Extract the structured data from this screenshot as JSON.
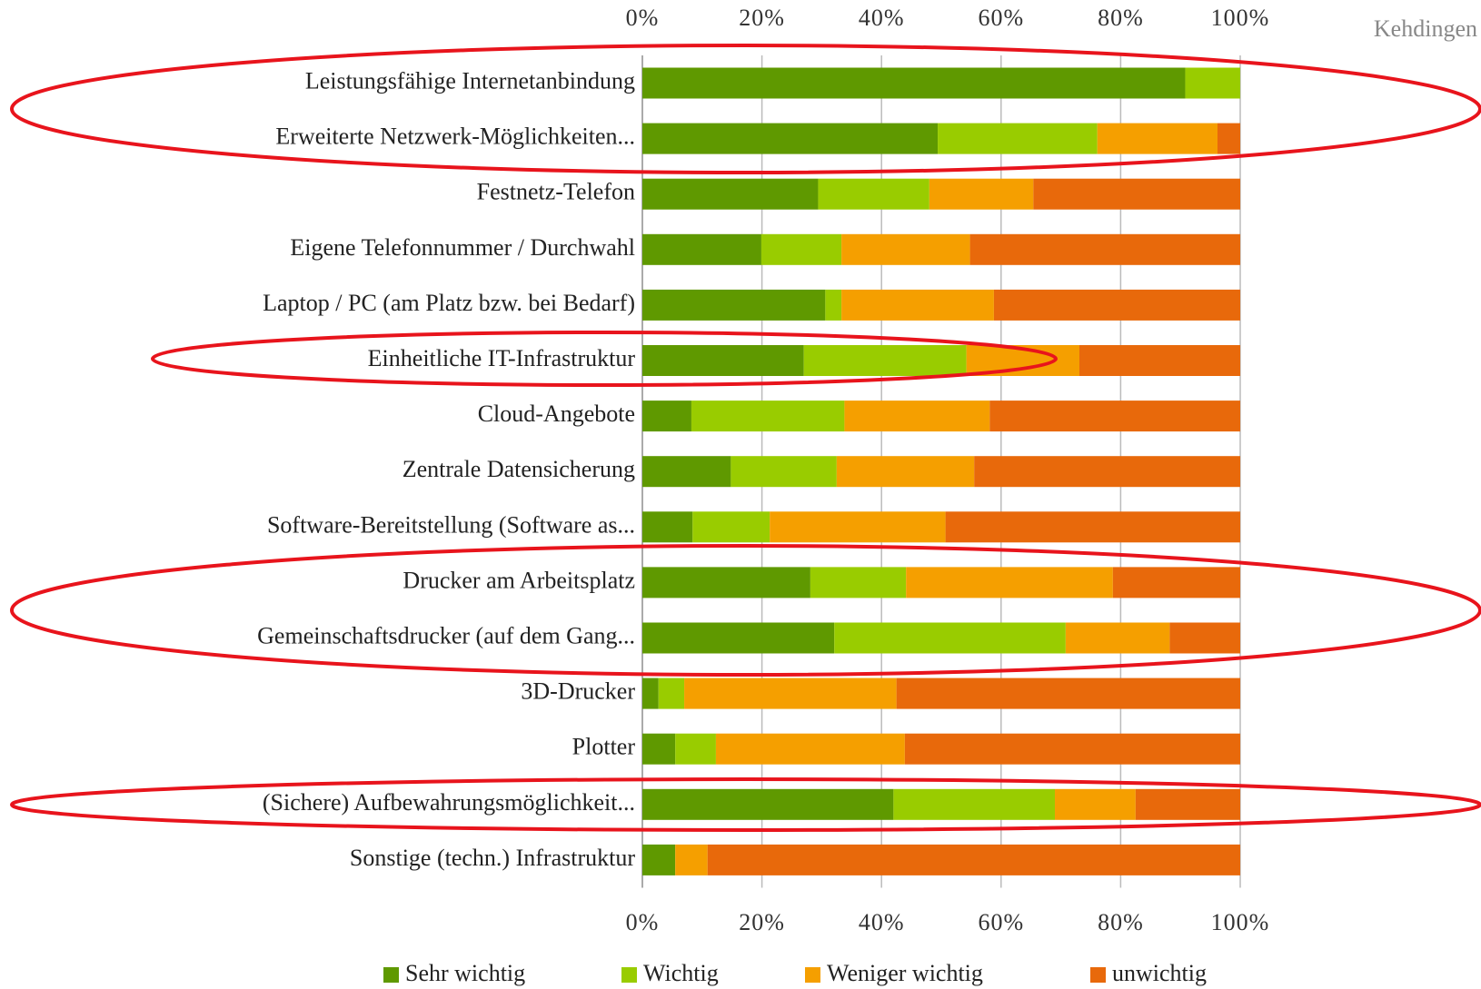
{
  "chart_data": {
    "type": "stacked_barh",
    "annotation": "Kehdingen",
    "categories": [
      "Leistungsfähige Internetanbindung",
      "Erweiterte Netzwerk-Möglichkeiten...",
      "Festnetz-Telefon",
      "Eigene Telefonnummer / Durchwahl",
      "Laptop / PC (am Platz bzw. bei Bedarf)",
      "Einheitliche IT-Infrastruktur",
      "Cloud-Angebote",
      "Zentrale Datensicherung",
      "Software-Bereitstellung (Software as...",
      "Drucker am Arbeitsplatz",
      "Gemeinschaftsdrucker (auf dem Gang...",
      "3D-Drucker",
      "Plotter",
      "(Sichere) Aufbewahrungsmöglichkeit...",
      "Sonstige (techn.) Infrastruktur"
    ],
    "series": [
      {
        "name": "Sehr wichtig",
        "color": "#5f9900",
        "values": [
          90.8,
          49.4,
          29.4,
          19.9,
          30.6,
          27.0,
          8.2,
          14.8,
          8.4,
          28.1,
          32.1,
          2.7,
          5.5,
          42.0,
          5.5
        ]
      },
      {
        "name": "Wichtig",
        "color": "#99cc00",
        "values": [
          9.2,
          26.7,
          18.6,
          13.4,
          2.7,
          27.2,
          25.6,
          17.7,
          12.9,
          16.0,
          38.7,
          4.3,
          6.8,
          27.0,
          0
        ]
      },
      {
        "name": "Weniger wichtig",
        "color": "#f59f00",
        "values": [
          0,
          20.1,
          17.4,
          21.5,
          25.5,
          18.9,
          24.3,
          23.0,
          29.4,
          34.6,
          17.4,
          35.5,
          31.6,
          13.5,
          5.4
        ]
      },
      {
        "name": "unwichtig",
        "color": "#e8690b",
        "values": [
          0,
          3.8,
          34.6,
          45.2,
          41.2,
          26.9,
          41.9,
          44.5,
          49.3,
          21.3,
          11.8,
          57.5,
          56.1,
          17.5,
          89.1
        ]
      }
    ],
    "xlim": [
      0,
      100
    ],
    "xticks": [
      {
        "value": 0,
        "label": "0%"
      },
      {
        "value": 20,
        "label": "20%"
      },
      {
        "value": 40,
        "label": "40%"
      },
      {
        "value": 60,
        "label": "60%"
      },
      {
        "value": 80,
        "label": "80%"
      },
      {
        "value": 100,
        "label": "100%"
      }
    ],
    "grid": true,
    "legend": "bottom"
  }
}
